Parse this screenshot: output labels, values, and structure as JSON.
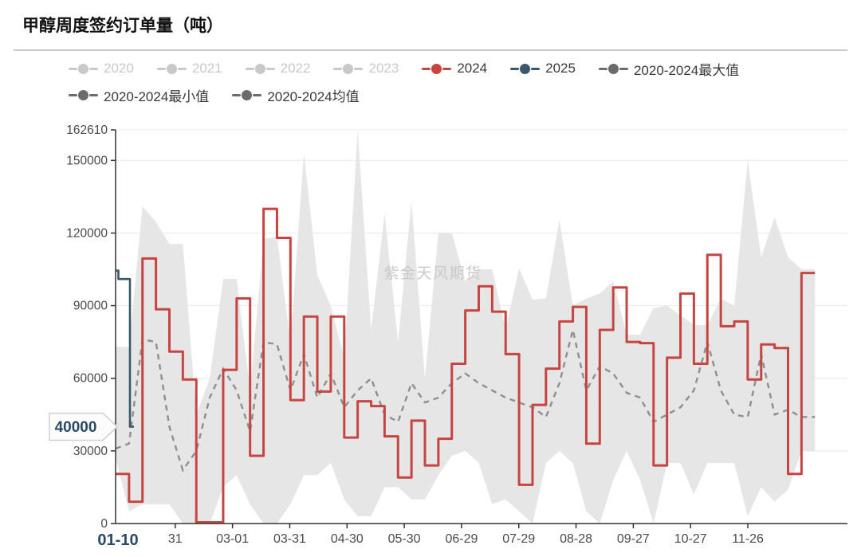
{
  "title": "甲醇周度签约订单量（吨）",
  "watermark": "紫金天风期货",
  "colors": {
    "red_2024": "#c64540",
    "navy_2025": "#3a576b",
    "gray_series": "#6b6b6b",
    "disabled_legend": "#c9c9c9",
    "band_fill": "#e6e6e6",
    "mean_line": "#8f8f8f",
    "grid": "#e8e8e8",
    "axis": "#333333",
    "tick_label": "#4a4a4a",
    "highlight_label": "#2b4a63",
    "watermark_color": "#cacaca",
    "badge_bg": "#fcfcfc",
    "badge_border": "#cfcfcf"
  },
  "legend": {
    "rows": [
      [
        {
          "label": "2020",
          "state": "disabled",
          "color": "#c9c9c9"
        },
        {
          "label": "2021",
          "state": "disabled",
          "color": "#c9c9c9"
        },
        {
          "label": "2022",
          "state": "disabled",
          "color": "#c9c9c9"
        },
        {
          "label": "2023",
          "state": "disabled",
          "color": "#c9c9c9"
        },
        {
          "label": "2024",
          "state": "active",
          "color": "#c64540"
        },
        {
          "label": "2025",
          "state": "active",
          "color": "#3a576b"
        },
        {
          "label": "2020-2024最大值",
          "state": "active",
          "color": "#6b6b6b"
        }
      ],
      [
        {
          "label": "2020-2024最小值",
          "state": "active",
          "color": "#6b6b6b"
        },
        {
          "label": "2020-2024均值",
          "state": "active",
          "color": "#6b6b6b"
        }
      ]
    ]
  },
  "axis": {
    "y_ticks": [
      0,
      30000,
      60000,
      90000,
      120000,
      150000,
      162610
    ],
    "y_max": 162610,
    "x_labels": [
      "01-10",
      "31",
      "03-01",
      "03-31",
      "04-30",
      "05-30",
      "06-29",
      "07-29",
      "08-28",
      "09-27",
      "10-27",
      "11-26"
    ],
    "x_highlight_label": "01-10",
    "y_badge_value": "40000"
  },
  "chart_data": {
    "type": "line",
    "title": "甲醇周度签约订单量（吨）",
    "ylabel": "吨",
    "ylim": [
      0,
      162610
    ],
    "x_tick_labels": [
      "01-10",
      "31",
      "03-01",
      "03-31",
      "04-30",
      "05-30",
      "06-29",
      "07-29",
      "08-28",
      "09-27",
      "10-27",
      "11-26"
    ],
    "weeks": 52,
    "legend_position": "top",
    "grid": true,
    "series": [
      {
        "name": "2020",
        "type": "line",
        "visible": false,
        "values": []
      },
      {
        "name": "2021",
        "type": "line",
        "visible": false,
        "values": []
      },
      {
        "name": "2022",
        "type": "line",
        "visible": false,
        "values": []
      },
      {
        "name": "2023",
        "type": "line",
        "visible": false,
        "values": []
      },
      {
        "name": "2024",
        "type": "step",
        "visible": true,
        "values": [
          20500,
          9000,
          109500,
          88500,
          71000,
          59500,
          500,
          500,
          63500,
          93000,
          28000,
          130000,
          118000,
          51000,
          85500,
          54500,
          85500,
          35500,
          50500,
          48500,
          36000,
          19000,
          42500,
          24000,
          35000,
          66000,
          88000,
          98000,
          87500,
          70000,
          16000,
          49000,
          64000,
          83500,
          89500,
          33000,
          80000,
          97500,
          75000,
          74500,
          24000,
          68500,
          95000,
          66000,
          111000,
          81500,
          83500,
          59500,
          74000,
          72500,
          20500,
          103500
        ]
      },
      {
        "name": "2025",
        "type": "step",
        "visible": true,
        "values": [
          104500,
          101000,
          40000
        ]
      },
      {
        "name": "2020-2024最大值",
        "type": "band-top",
        "visible": true,
        "values": [
          73000,
          73000,
          131000,
          124500,
          115500,
          115500,
          45000,
          60000,
          101000,
          101000,
          55000,
          117500,
          118500,
          75000,
          153000,
          102500,
          90000,
          68500,
          162610,
          80000,
          128000,
          75000,
          133000,
          60000,
          120000,
          120000,
          100000,
          105000,
          105000,
          80000,
          105500,
          92500,
          93000,
          125500,
          90000,
          93000,
          95000,
          100000,
          78000,
          78000,
          89000,
          90000,
          86000,
          82000,
          82000,
          93000,
          90000,
          150000,
          110000,
          126500,
          110000,
          105000
        ]
      },
      {
        "name": "2020-2024最小值",
        "type": "band-bottom",
        "visible": true,
        "values": [
          27000,
          5000,
          8000,
          8000,
          8000,
          0,
          0,
          0,
          15000,
          20000,
          8000,
          0,
          0,
          8000,
          20000,
          20000,
          25000,
          10000,
          3000,
          3000,
          15000,
          15000,
          10000,
          10000,
          20000,
          28000,
          30000,
          25000,
          8000,
          10000,
          5000,
          0,
          25000,
          30000,
          25000,
          5000,
          0,
          18000,
          30000,
          18000,
          0,
          25000,
          25000,
          12000,
          25000,
          25000,
          25000,
          3000,
          15000,
          9000,
          14000,
          30000
        ]
      },
      {
        "name": "2020-2024均值",
        "type": "dashed-line",
        "visible": true,
        "values": [
          31000,
          33000,
          76000,
          75000,
          40000,
          22000,
          30000,
          52000,
          64000,
          55000,
          38000,
          75000,
          74000,
          55000,
          70000,
          52000,
          62000,
          48000,
          55000,
          60000,
          45000,
          42000,
          58000,
          50000,
          52000,
          58000,
          62000,
          58000,
          55000,
          52000,
          50000,
          48000,
          44000,
          58000,
          80000,
          55000,
          65000,
          62000,
          54000,
          52000,
          42000,
          45000,
          48000,
          55000,
          75000,
          55000,
          45000,
          44000,
          70000,
          45000,
          47000,
          44000
        ]
      }
    ],
    "latest_point": {
      "series": "2025",
      "x_label": "01-10",
      "value": 40000
    }
  }
}
